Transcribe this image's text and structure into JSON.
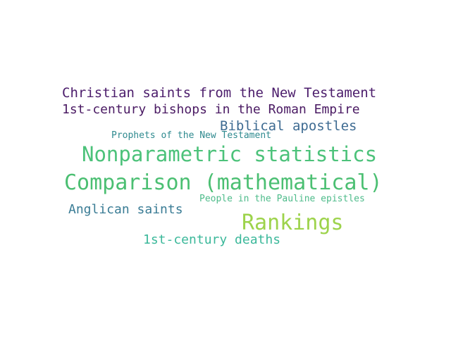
{
  "words": [
    {
      "id": "w-christian-saints",
      "text": "Christian saints from the New Testament",
      "color": "#4b1c6b"
    },
    {
      "id": "w-bishops",
      "text": "1st-century bishops in the Roman Empire",
      "color": "#4a1a63"
    },
    {
      "id": "w-biblical-apostles",
      "text": "Biblical apostles",
      "color": "#3e6b92"
    },
    {
      "id": "w-prophets",
      "text": "Prophets of the New Testament",
      "color": "#2f8a8f"
    },
    {
      "id": "w-nonparametric",
      "text": "Nonparametric statistics",
      "color": "#4cc27a"
    },
    {
      "id": "w-comparison",
      "text": "Comparison (mathematical)",
      "color": "#4bbf72"
    },
    {
      "id": "w-pauline",
      "text": "People in the Pauline epistles",
      "color": "#4dbb8a"
    },
    {
      "id": "w-anglican",
      "text": "Anglican saints",
      "color": "#3a7c95"
    },
    {
      "id": "w-rankings",
      "text": "Rankings",
      "color": "#9dd34b"
    },
    {
      "id": "w-deaths",
      "text": "1st-century deaths",
      "color": "#3bb89a"
    }
  ]
}
